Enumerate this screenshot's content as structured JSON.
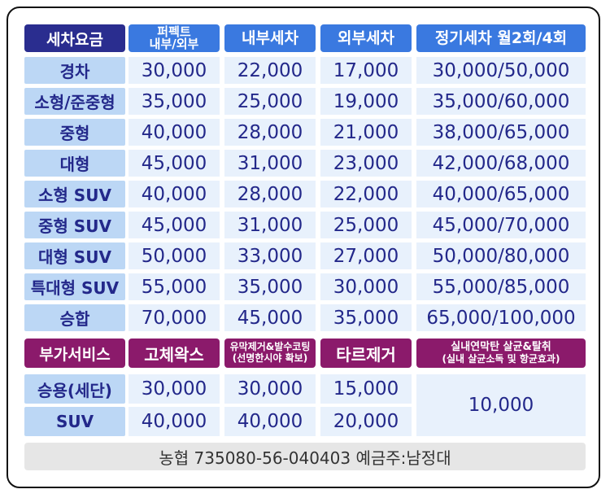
{
  "pricing": {
    "header": {
      "label": "세차요금",
      "perfect_line1": "퍼펙트",
      "perfect_line2": "내부/외부",
      "interior": "내부세차",
      "exterior": "외부세차",
      "regular": "정기세차 월2회/4회"
    },
    "rows": [
      {
        "label": "경차",
        "perfect": "30,000",
        "interior": "22,000",
        "exterior": "17,000",
        "regular": "30,000/50,000"
      },
      {
        "label": "소형/준중형",
        "perfect": "35,000",
        "interior": "25,000",
        "exterior": "19,000",
        "regular": "35,000/60,000"
      },
      {
        "label": "중형",
        "perfect": "40,000",
        "interior": "28,000",
        "exterior": "21,000",
        "regular": "38,000/65,000"
      },
      {
        "label": "대형",
        "perfect": "45,000",
        "interior": "31,000",
        "exterior": "23,000",
        "regular": "42,000/68,000"
      },
      {
        "label": "소형 SUV",
        "perfect": "40,000",
        "interior": "28,000",
        "exterior": "22,000",
        "regular": "40,000/65,000"
      },
      {
        "label": "중형 SUV",
        "perfect": "45,000",
        "interior": "31,000",
        "exterior": "25,000",
        "regular": "45,000/70,000"
      },
      {
        "label": "대형 SUV",
        "perfect": "50,000",
        "interior": "33,000",
        "exterior": "27,000",
        "regular": "50,000/80,000"
      },
      {
        "label": "특대형 SUV",
        "perfect": "55,000",
        "interior": "35,000",
        "exterior": "30,000",
        "regular": "55,000/85,000"
      },
      {
        "label": "승합",
        "perfect": "70,000",
        "interior": "45,000",
        "exterior": "35,000",
        "regular": "65,000/100,000"
      }
    ]
  },
  "extras": {
    "header": {
      "label": "부가서비스",
      "wax": "고체왁스",
      "film_line1": "유막제거&발수코팅",
      "film_line2": "(선명한시야 확보)",
      "tar": "타르제거",
      "sterilize_line1": "실내연막탄 살균&탈취",
      "sterilize_line2": "(실내 살균소독 및 항균효과)"
    },
    "rows": [
      {
        "label": "승용(세단)",
        "wax": "30,000",
        "film": "30,000",
        "tar": "15,000"
      },
      {
        "label": "SUV",
        "wax": "40,000",
        "film": "40,000",
        "tar": "20,000"
      }
    ],
    "sterilize_price": "10,000"
  },
  "footer": {
    "account": "농협 735080-56-040403 예금주:남정대"
  },
  "colors": {
    "navy": "#2a2d8f",
    "blue": "#3a79e0",
    "plum": "#8b1a6b",
    "label_bg": "#bcd7f5",
    "value_bg": "#e8f1fc",
    "text": "#23288a"
  }
}
